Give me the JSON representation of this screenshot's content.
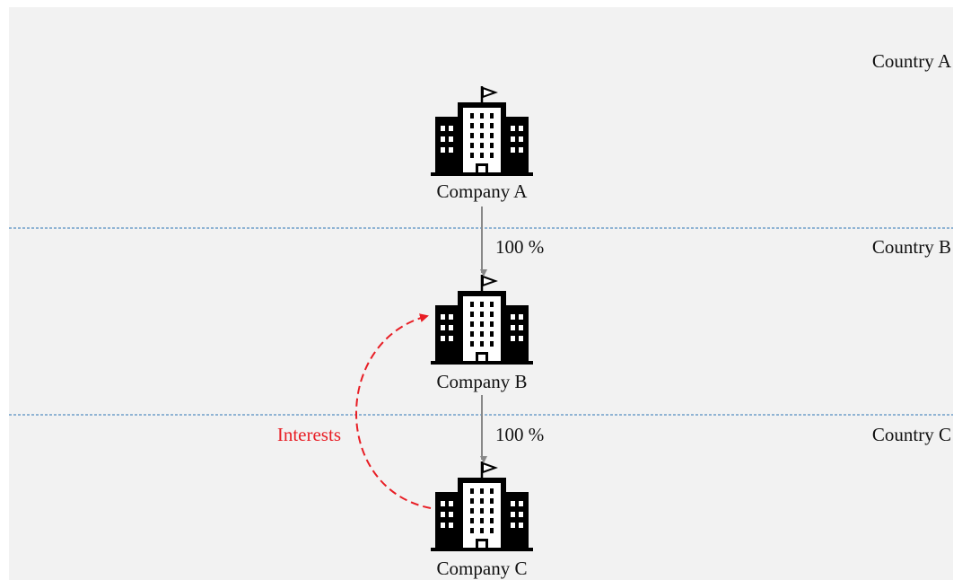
{
  "countries": [
    "Country A",
    "Country B",
    "Country C"
  ],
  "companies": [
    "Company A",
    "Company B",
    "Company C"
  ],
  "ownership": [
    {
      "label": "100 %"
    },
    {
      "label": "100 %"
    }
  ],
  "interests": {
    "label": "Interests"
  }
}
